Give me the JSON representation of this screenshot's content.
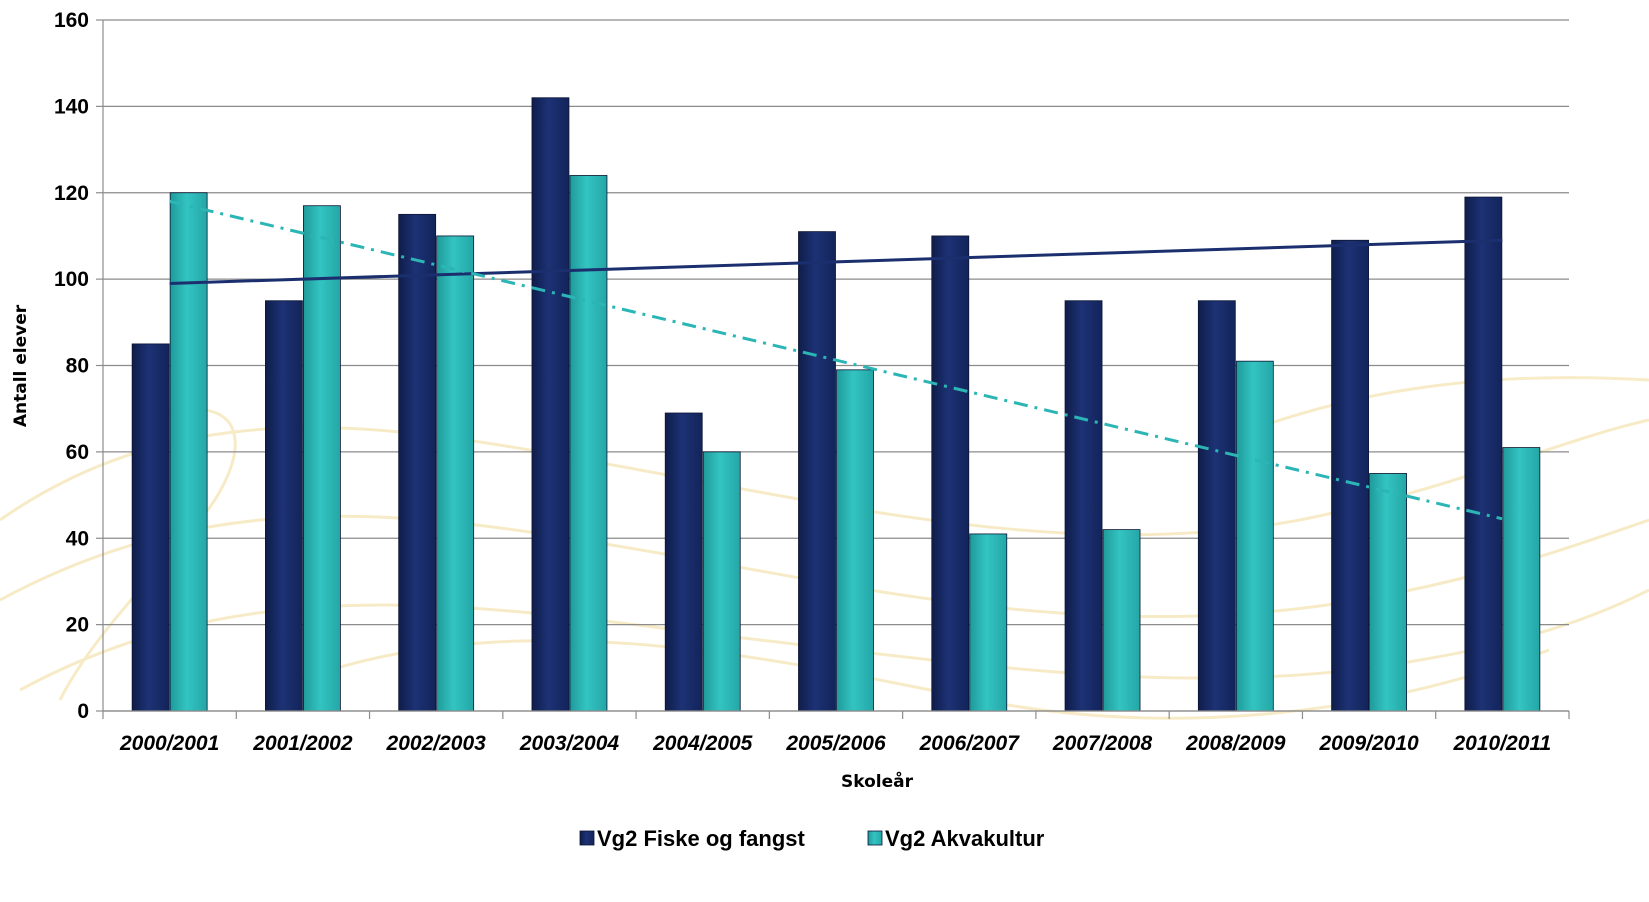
{
  "chart_data": {
    "type": "bar",
    "categories": [
      "2000/2001",
      "2001/2002",
      "2002/2003",
      "2003/2004",
      "2004/2005",
      "2005/2006",
      "2006/2007",
      "2007/2008",
      "2008/2009",
      "2009/2010",
      "2010/2011"
    ],
    "series": [
      {
        "name": "Vg2 Fiske og fangst",
        "color": "#1b2f6e",
        "values": [
          85,
          95,
          115,
          142,
          69,
          111,
          110,
          95,
          95,
          109,
          119
        ]
      },
      {
        "name": "Vg2 Akvakultur",
        "color": "#2bb5b5",
        "values": [
          120,
          117,
          110,
          124,
          60,
          79,
          41,
          42,
          81,
          55,
          61
        ]
      }
    ],
    "trendlines": [
      {
        "series": "Vg2 Fiske og fangst",
        "style": "solid",
        "color": "#1b2f6e",
        "start": 99,
        "end": 109
      },
      {
        "series": "Vg2 Akvakultur",
        "style": "dash-dot",
        "color": "#2bb5b5",
        "start": 118,
        "end": 44.5
      }
    ],
    "xlabel": "Skoleår",
    "ylabel": "Antall elever",
    "ylim": [
      0,
      160
    ],
    "yticks": [
      0,
      20,
      40,
      60,
      80,
      100,
      120,
      140,
      160
    ],
    "grid": true,
    "legend": "bottom-center"
  }
}
